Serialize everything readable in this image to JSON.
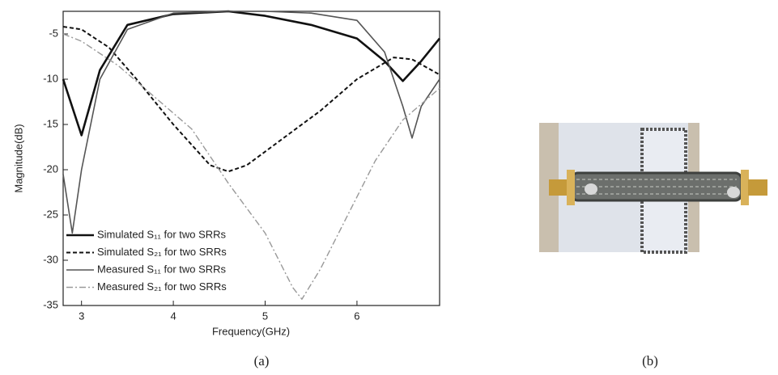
{
  "chart_data": {
    "type": "line",
    "x_label": "Frequency(GHz)",
    "y_label": "Magnitude(dB)",
    "xlim": [
      2.8,
      6.9
    ],
    "xticks": [
      3,
      4,
      5,
      6
    ],
    "ylim": [
      -35,
      -2.5
    ],
    "yticks": [
      -35,
      -30,
      -25,
      -20,
      -15,
      -10,
      -5
    ],
    "legend": "lower left",
    "series": [
      {
        "name": "Simulated S₁₁ for two SRRs",
        "color": "#111111",
        "line_style": "solid",
        "line_width": 2.6,
        "x": [
          2.8,
          3.0,
          3.2,
          3.5,
          4.0,
          4.6,
          5.0,
          5.5,
          6.0,
          6.3,
          6.5,
          6.7,
          6.9
        ],
        "values": [
          -10,
          -16.2,
          -9,
          -4,
          -2.8,
          -2.5,
          -3,
          -4,
          -5.5,
          -8,
          -10.2,
          -8,
          -5.5
        ]
      },
      {
        "name": "Simulated S₂₁ for two SRRs",
        "color": "#111111",
        "line_style": "dashed",
        "line_width": 2,
        "x": [
          2.8,
          3.0,
          3.3,
          3.6,
          4.0,
          4.4,
          4.6,
          4.8,
          5.2,
          5.6,
          6.0,
          6.4,
          6.6,
          6.9
        ],
        "values": [
          -4.2,
          -4.5,
          -6.5,
          -10,
          -15,
          -19.5,
          -20.2,
          -19.5,
          -16.5,
          -13.5,
          -10,
          -7.6,
          -7.8,
          -9.5
        ]
      },
      {
        "name": "Measured S₁₁ for two SRRs",
        "color": "#555555",
        "line_style": "solid",
        "line_width": 1.6,
        "x": [
          2.8,
          2.9,
          3.0,
          3.2,
          3.5,
          4.0,
          4.6,
          5.0,
          5.5,
          6.0,
          6.3,
          6.5,
          6.6,
          6.7,
          6.9
        ],
        "values": [
          -20.5,
          -27,
          -20,
          -10,
          -4.5,
          -2.7,
          -2.5,
          -2.5,
          -2.7,
          -3.5,
          -7,
          -13,
          -16.5,
          -13,
          -10
        ]
      },
      {
        "name": "Measured S₂₁ for two SRRs",
        "color": "#999999",
        "line_style": "dashdot",
        "line_width": 1.4,
        "x": [
          2.8,
          3.0,
          3.4,
          3.8,
          4.2,
          4.6,
          5.0,
          5.3,
          5.4,
          5.6,
          5.9,
          6.2,
          6.5,
          6.9
        ],
        "values": [
          -5,
          -5.8,
          -8.5,
          -12,
          -15.5,
          -21.5,
          -27,
          -33,
          -34.3,
          -31,
          -25,
          -19,
          -14.5,
          -11
        ]
      }
    ]
  },
  "captions": [
    "(a)",
    "(b)"
  ]
}
